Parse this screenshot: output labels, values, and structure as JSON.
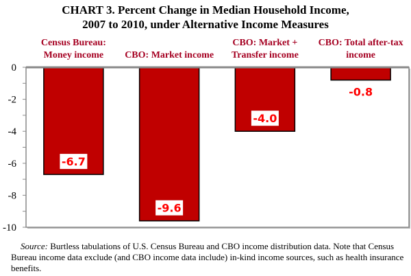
{
  "chart_data": {
    "type": "bar",
    "title": "CHART 3.  Percent Change in Median Household Income, 2007 to 2010, under Alternative Income Measures",
    "title_lines": [
      "CHART 3.  Percent Change in Median Household Income,",
      "2007 to 2010, under Alternative Income Measures"
    ],
    "categories": [
      [
        "Census Bureau:",
        "Money income"
      ],
      [
        "CBO: Market income"
      ],
      [
        "CBO: Market +",
        "Transfer income"
      ],
      [
        "CBO: Total after-tax",
        "income"
      ]
    ],
    "values": [
      -6.7,
      -9.6,
      -4.0,
      -0.8
    ],
    "data_labels": [
      "-6.7",
      "-9.6",
      "-4.0",
      "-0.8"
    ],
    "ylim": [
      -10,
      0
    ],
    "yticks": [
      "0",
      "-2",
      "-4",
      "-6",
      "-8",
      "-10"
    ],
    "grid": false,
    "colors": {
      "bar": "#c00000",
      "category_label": "#a50021",
      "data_label": "#ff0000"
    }
  },
  "source": {
    "prefix": "Source:",
    "text": " Burtless tabulations of  U.S. Census Bureau and CBO income distribution  data.  Note that Census Bureau income data exclude (and CBO income data include) in-kind income sources, such as health insurance benefits."
  }
}
